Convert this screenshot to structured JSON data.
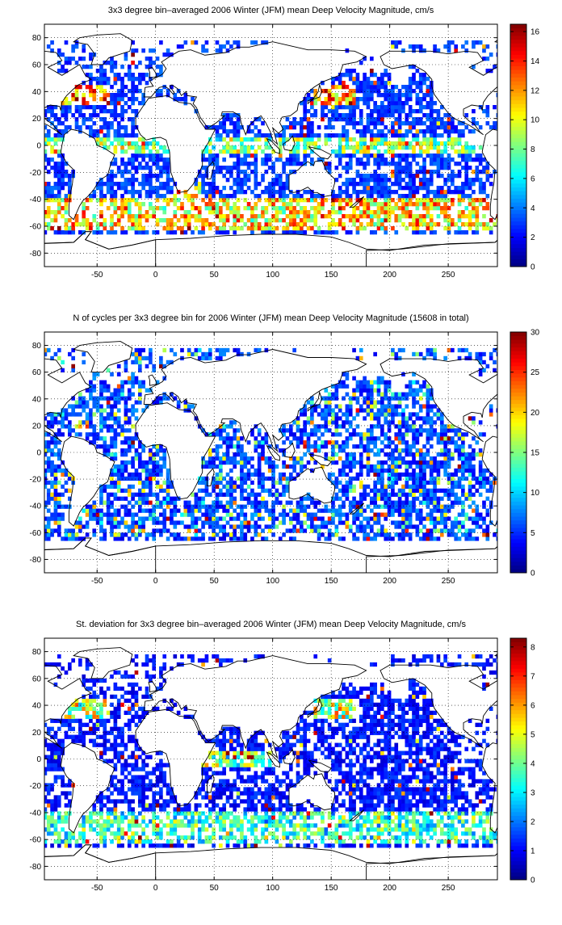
{
  "panels": [
    {
      "title": "3x3 degree bin–averaged 2006 Winter (JFM) mean Deep Velocity Magnitude, cm/s",
      "colorbar": {
        "min": 0,
        "max": 16.5,
        "ticks": [
          0,
          2,
          4,
          6,
          8,
          10,
          12,
          14,
          16
        ]
      },
      "x_ticks": [
        -50,
        0,
        50,
        100,
        150,
        200,
        250
      ],
      "y_ticks": [
        -80,
        -60,
        -40,
        -20,
        0,
        20,
        40,
        60,
        80
      ],
      "xlim": [
        -95,
        292
      ],
      "ylim": [
        -90,
        90
      ],
      "colormap": "jet",
      "field_character": "velocity"
    },
    {
      "title": "N of cycles per 3x3 degree bin for 2006 Winter (JFM) mean Deep Velocity Magnitude (15608 in total)",
      "colorbar": {
        "min": 0,
        "max": 30,
        "ticks": [
          0,
          5,
          10,
          15,
          20,
          25,
          30
        ]
      },
      "x_ticks": [
        -50,
        0,
        50,
        100,
        150,
        200,
        250
      ],
      "y_ticks": [
        -80,
        -60,
        -40,
        -20,
        0,
        20,
        40,
        60,
        80
      ],
      "xlim": [
        -95,
        292
      ],
      "ylim": [
        -90,
        90
      ],
      "colormap": "jet",
      "field_character": "count"
    },
    {
      "title": "St. deviation for 3x3 degree bin–averaged 2006 Winter (JFM) mean Deep Velocity Magnitude, cm/s",
      "colorbar": {
        "min": 0,
        "max": 8.3,
        "ticks": [
          0,
          1,
          2,
          3,
          4,
          5,
          6,
          7,
          8
        ]
      },
      "x_ticks": [
        -50,
        0,
        50,
        100,
        150,
        200,
        250
      ],
      "y_ticks": [
        -80,
        -60,
        -40,
        -20,
        0,
        20,
        40,
        60,
        80
      ],
      "xlim": [
        -95,
        292
      ],
      "ylim": [
        -90,
        90
      ],
      "colormap": "jet",
      "field_character": "stdev"
    }
  ],
  "bin_size_deg": 3,
  "grid": "dotted",
  "colors": {
    "land_outline": "#000000",
    "background": "#ffffff",
    "grid": "#000000"
  }
}
